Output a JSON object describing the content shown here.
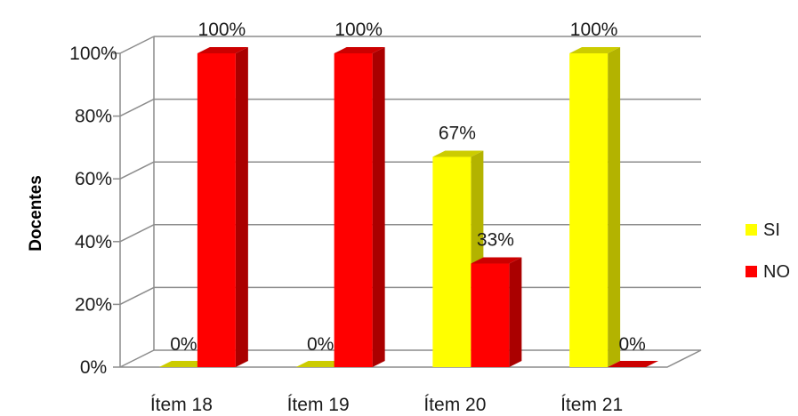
{
  "chart_data": {
    "type": "bar",
    "categories": [
      "Ítem 18",
      "Ítem 19",
      "Ítem 20",
      "Ítem 21"
    ],
    "series": [
      {
        "name": "SI",
        "values": [
          0,
          0,
          67,
          100
        ],
        "color": "#ffff00",
        "side": "#b3b300",
        "top": "#cccc00"
      },
      {
        "name": "NO",
        "values": [
          100,
          100,
          33,
          0
        ],
        "color": "#ff0000",
        "side": "#aa0000",
        "top": "#cc0000"
      }
    ],
    "data_labels": [
      [
        "0%",
        "0%",
        "67%",
        "100%"
      ],
      [
        "100%",
        "100%",
        "33%",
        "0%"
      ]
    ],
    "ylabel": "Docentes",
    "xlabel": "",
    "ylim": [
      0,
      100
    ],
    "yticks": [
      "0%",
      "20%",
      "40%",
      "60%",
      "80%",
      "100%"
    ],
    "ytick_values": [
      0,
      20,
      40,
      60,
      80,
      100
    ],
    "grid": true,
    "legend_position": "right",
    "style": "3d-clustered-column"
  }
}
